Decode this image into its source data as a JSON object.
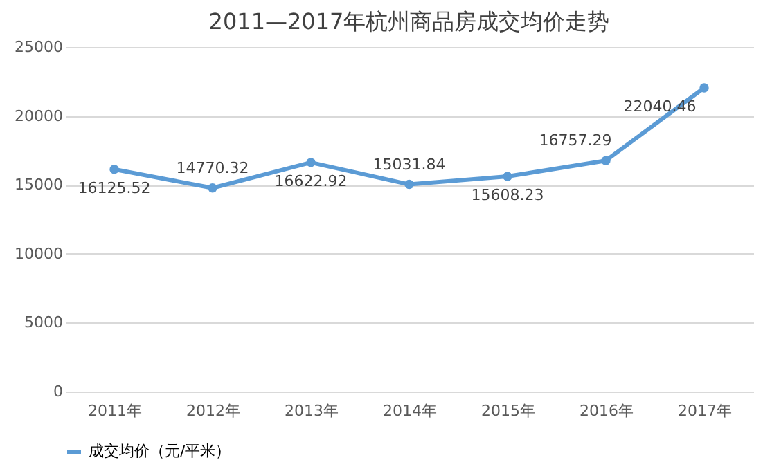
{
  "chart_data": {
    "type": "line",
    "title": "2011—2017年杭州商品房成交均价走势",
    "categories": [
      "2011年",
      "2012年",
      "2013年",
      "2014年",
      "2015年",
      "2016年",
      "2017年"
    ],
    "series": [
      {
        "name": "成交均价（元/平米）",
        "color": "#5b9bd5",
        "values": [
          16125.52,
          14770.32,
          16622.92,
          15031.84,
          15608.23,
          16757.29,
          22040.46
        ]
      }
    ],
    "ylim": [
      0,
      25000
    ],
    "yticks": [
      0,
      5000,
      10000,
      15000,
      20000,
      25000
    ],
    "grid": "y",
    "legend": "bottom",
    "marker": "circle",
    "line_style": "solid",
    "data_labels": true
  }
}
